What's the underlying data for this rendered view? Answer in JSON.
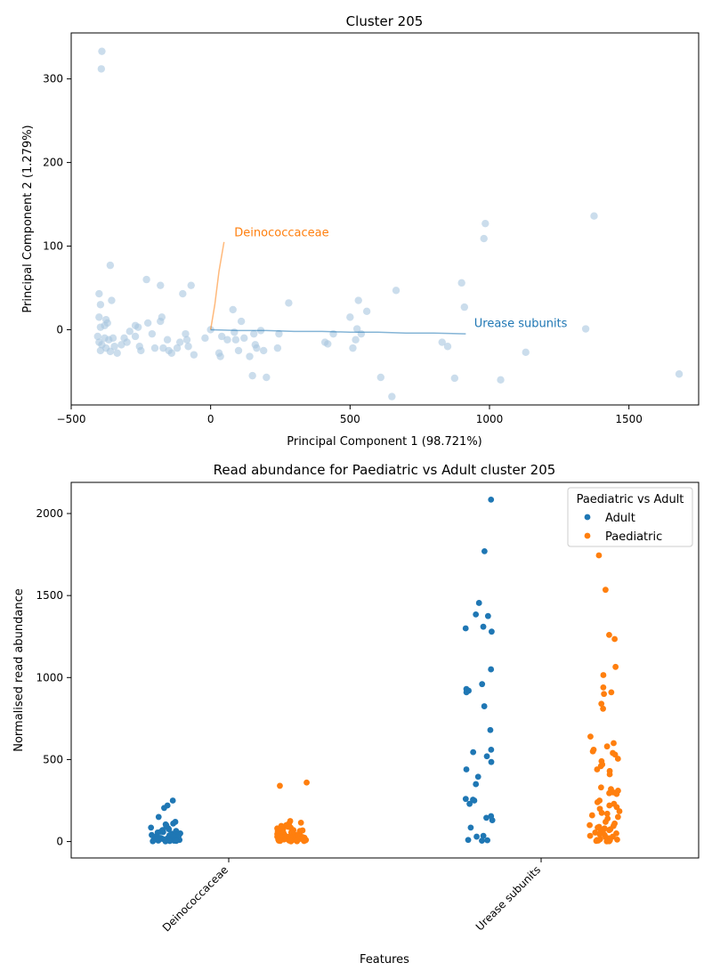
{
  "chart_data": [
    {
      "type": "scatter",
      "title": "Cluster 205",
      "xlabel": "Principal Component 1 (98.721%)",
      "ylabel": "Principal Component 2 (1.279%)",
      "xlim": [
        -500,
        1750
      ],
      "ylim": [
        -90,
        355
      ],
      "xticks": [
        -500,
        0,
        500,
        1000,
        1500
      ],
      "yticks": [
        0,
        100,
        200,
        300
      ],
      "xtick_labels": [
        "−500",
        "0",
        "500",
        "1000",
        "1500"
      ],
      "ytick_labels": [
        "0",
        "100",
        "200",
        "300"
      ],
      "grid": false,
      "point_color": "#a8c7e0",
      "points": [
        [
          -390,
          333
        ],
        [
          -392,
          312
        ],
        [
          -360,
          77
        ],
        [
          -400,
          43
        ],
        [
          -395,
          30
        ],
        [
          -355,
          35
        ],
        [
          -400,
          15
        ],
        [
          -375,
          12
        ],
        [
          -370,
          8
        ],
        [
          -380,
          5
        ],
        [
          -395,
          3
        ],
        [
          -405,
          -8
        ],
        [
          -380,
          -10
        ],
        [
          -365,
          -12
        ],
        [
          -400,
          -15
        ],
        [
          -390,
          -18
        ],
        [
          -375,
          -22
        ],
        [
          -395,
          -25
        ],
        [
          -360,
          -26
        ],
        [
          -350,
          -10
        ],
        [
          -345,
          -20
        ],
        [
          -335,
          -28
        ],
        [
          -320,
          -18
        ],
        [
          -310,
          -10
        ],
        [
          -300,
          -15
        ],
        [
          -290,
          -2
        ],
        [
          -270,
          5
        ],
        [
          -260,
          3
        ],
        [
          -270,
          -8
        ],
        [
          -255,
          -20
        ],
        [
          -250,
          -25
        ],
        [
          -230,
          60
        ],
        [
          -225,
          8
        ],
        [
          -210,
          -5
        ],
        [
          -200,
          -22
        ],
        [
          -180,
          10
        ],
        [
          -175,
          15
        ],
        [
          -180,
          53
        ],
        [
          -170,
          -22
        ],
        [
          -155,
          -12
        ],
        [
          -150,
          -25
        ],
        [
          -140,
          -28
        ],
        [
          -120,
          -22
        ],
        [
          -110,
          -15
        ],
        [
          -100,
          43
        ],
        [
          -90,
          -5
        ],
        [
          -85,
          -12
        ],
        [
          -80,
          -20
        ],
        [
          -70,
          53
        ],
        [
          -60,
          -30
        ],
        [
          -20,
          -10
        ],
        [
          0,
          0
        ],
        [
          30,
          -28
        ],
        [
          35,
          -32
        ],
        [
          40,
          -8
        ],
        [
          60,
          -12
        ],
        [
          80,
          24
        ],
        [
          90,
          -12
        ],
        [
          85,
          -3
        ],
        [
          100,
          -25
        ],
        [
          110,
          10
        ],
        [
          120,
          -10
        ],
        [
          140,
          -32
        ],
        [
          150,
          -55
        ],
        [
          155,
          -5
        ],
        [
          160,
          -18
        ],
        [
          165,
          -22
        ],
        [
          180,
          -1
        ],
        [
          190,
          -25
        ],
        [
          200,
          -57
        ],
        [
          240,
          -22
        ],
        [
          245,
          -5
        ],
        [
          280,
          32
        ],
        [
          410,
          -15
        ],
        [
          420,
          -17
        ],
        [
          440,
          -5
        ],
        [
          500,
          15
        ],
        [
          510,
          -22
        ],
        [
          520,
          -12
        ],
        [
          525,
          1
        ],
        [
          530,
          35
        ],
        [
          540,
          -5
        ],
        [
          560,
          22
        ],
        [
          610,
          -57
        ],
        [
          650,
          -80
        ],
        [
          665,
          47
        ],
        [
          830,
          -15
        ],
        [
          850,
          -20
        ],
        [
          875,
          -58
        ],
        [
          900,
          56
        ],
        [
          910,
          27
        ],
        [
          980,
          109
        ],
        [
          985,
          127
        ],
        [
          1040,
          -60
        ],
        [
          1130,
          -27
        ],
        [
          1345,
          1
        ],
        [
          1375,
          136
        ],
        [
          1680,
          -53
        ]
      ],
      "loadings": [
        {
          "name": "Deinococcaceae",
          "color": "#ff7f0e",
          "text_pos": [
            85,
            112
          ],
          "path": [
            [
              0,
              0
            ],
            [
              15,
              30
            ],
            [
              30,
              70
            ],
            [
              48,
              105
            ]
          ]
        },
        {
          "name": "Urease subunits",
          "color": "#1f77b4",
          "text_pos": [
            945,
            3
          ],
          "path": [
            [
              0,
              0
            ],
            [
              100,
              -1
            ],
            [
              200,
              -1
            ],
            [
              300,
              -2
            ],
            [
              400,
              -2
            ],
            [
              500,
              -3
            ],
            [
              600,
              -3
            ],
            [
              700,
              -4
            ],
            [
              800,
              -4
            ],
            [
              915,
              -5
            ]
          ]
        }
      ]
    },
    {
      "type": "strip",
      "title": "Read abundance for Paediatric vs Adult cluster 205",
      "xlabel": "Features",
      "ylabel": "Normalised read abundance",
      "categories": [
        "Deinococcaceae",
        "Urease subunits"
      ],
      "ylim": [
        -100,
        2190
      ],
      "yticks": [
        0,
        500,
        1000,
        1500,
        2000
      ],
      "legend": {
        "title": "Paediatric vs Adult",
        "placement": "top-right"
      },
      "series": [
        {
          "name": "Adult",
          "color": "#1f77b4",
          "groups": [
            [
              250,
              220,
              205,
              150,
              120,
              110,
              105,
              100,
              95,
              85,
              80,
              75,
              70,
              65,
              60,
              58,
              55,
              50,
              48,
              45,
              42,
              40,
              38,
              35,
              33,
              30,
              28,
              26,
              25,
              22,
              20,
              18,
              16,
              15,
              13,
              12,
              10,
              8,
              6,
              5,
              4,
              3,
              2,
              1
            ],
            [
              2085,
              1770,
              1455,
              1385,
              1375,
              1310,
              1300,
              1280,
              1050,
              960,
              930,
              920,
              910,
              825,
              680,
              560,
              545,
              520,
              485,
              440,
              395,
              350,
              260,
              255,
              250,
              230,
              155,
              145,
              130,
              85,
              35,
              30,
              10,
              8,
              5
            ]
          ]
        },
        {
          "name": "Paediatric",
          "color": "#ff7f0e",
          "groups": [
            [
              360,
              340,
              125,
              115,
              110,
              100,
              95,
              90,
              85,
              80,
              75,
              70,
              68,
              65,
              62,
              60,
              58,
              55,
              52,
              50,
              48,
              46,
              44,
              42,
              40,
              38,
              36,
              35,
              34,
              32,
              30,
              29,
              28,
              27,
              26,
              25,
              24,
              23,
              22,
              21,
              20,
              19,
              18,
              17,
              16,
              15,
              14,
              13,
              12,
              11,
              10,
              9,
              8,
              7,
              6,
              5,
              4,
              3,
              2,
              1
            ],
            [
              1745,
              1535,
              1260,
              1235,
              1065,
              1015,
              940,
              910,
              900,
              840,
              810,
              640,
              600,
              580,
              560,
              550,
              540,
              530,
              505,
              490,
              470,
              460,
              440,
              430,
              410,
              330,
              320,
              310,
              300,
              295,
              290,
              250,
              240,
              230,
              220,
              210,
              200,
              185,
              175,
              170,
              160,
              150,
              140,
              120,
              110,
              100,
              95,
              90,
              85,
              80,
              75,
              70,
              65,
              60,
              55,
              50,
              45,
              40,
              35,
              30,
              25,
              20,
              15,
              12,
              10,
              8,
              6,
              4,
              2,
              1
            ]
          ]
        }
      ]
    }
  ]
}
